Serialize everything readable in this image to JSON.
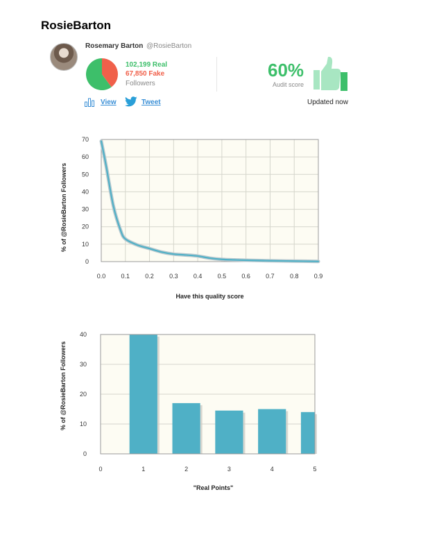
{
  "page_title": "RosieBarton",
  "profile": {
    "name": "Rosemary Barton",
    "handle": "@RosieBarton",
    "real_followers": "102,199 Real",
    "fake_followers": "67,850 Fake",
    "followers_label": "Followers",
    "real_count": 102199,
    "fake_count": 67850
  },
  "audit": {
    "score": "60%",
    "score_label": "Audit score",
    "updated": "Updated now"
  },
  "actions": {
    "view_label": "View",
    "tweet_label": "Tweet"
  },
  "icons": [
    "bar-chart-icon",
    "twitter-bird-icon",
    "thumbs-up-icon"
  ],
  "colors": {
    "real": "#3dbf6a",
    "fake": "#f0604a",
    "series": "#4fb0c6",
    "plot_bg": "#fdfcf3",
    "link": "#3a8fd6",
    "thumb": "#a8e6c2",
    "thumb_bar": "#3dbf6a"
  },
  "chart_data": [
    {
      "type": "line",
      "title": "",
      "xlabel": "Have this quality score",
      "ylabel": "% of @RosieBarton Followers",
      "xlim": [
        0,
        0.9
      ],
      "ylim": [
        0,
        70
      ],
      "xticks": [
        "0.0",
        "0.1",
        "0.2",
        "0.3",
        "0.4",
        "0.5",
        "0.6",
        "0.7",
        "0.8",
        "0.9"
      ],
      "yticks": [
        "0",
        "10",
        "20",
        "30",
        "40",
        "50",
        "60",
        "70"
      ],
      "grid": true,
      "series": [
        {
          "x": [
            0,
            0.02,
            0.05,
            0.08,
            0.1,
            0.15,
            0.2,
            0.25,
            0.3,
            0.35,
            0.4,
            0.45,
            0.5,
            0.55,
            0.6,
            0.7,
            0.8,
            0.9
          ],
          "values": [
            69,
            55,
            32,
            18,
            13,
            9.5,
            7.5,
            5.5,
            4.3,
            3.8,
            3.2,
            2.0,
            1.3,
            1.0,
            0.8,
            0.5,
            0.3,
            0.1
          ]
        }
      ]
    },
    {
      "type": "bar",
      "title": "",
      "xlabel": "\"Real Points\"",
      "ylabel": "% of @RosieBarton Followers",
      "xlim": [
        0,
        5
      ],
      "ylim": [
        0,
        40
      ],
      "xticks": [
        "0",
        "1",
        "2",
        "3",
        "4",
        "5"
      ],
      "yticks": [
        "0",
        "10",
        "20",
        "30",
        "40"
      ],
      "grid": true,
      "categories": [
        1,
        2,
        3,
        4,
        5
      ],
      "values": [
        40,
        17,
        14.5,
        15,
        14
      ]
    }
  ]
}
